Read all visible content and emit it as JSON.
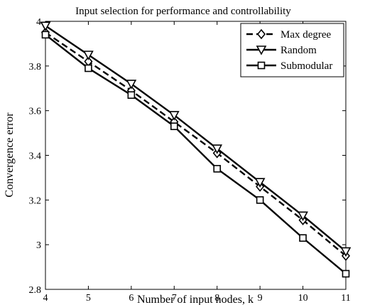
{
  "chart_data": {
    "type": "line",
    "title": "Input selection for performance and controllability",
    "xlabel": "Number of input nodes, k",
    "ylabel": "Convergence error",
    "xlim": [
      4,
      11
    ],
    "ylim": [
      2.8,
      4.0
    ],
    "x": [
      4,
      5,
      6,
      7,
      8,
      9,
      10,
      11
    ],
    "x_ticks": [
      "4",
      "5",
      "6",
      "7",
      "8",
      "9",
      "10",
      "11"
    ],
    "y_ticks": [
      {
        "value": 2.8,
        "label": "2.8"
      },
      {
        "value": 3.0,
        "label": "3"
      },
      {
        "value": 3.2,
        "label": "3.2"
      },
      {
        "value": 3.4,
        "label": "3.4"
      },
      {
        "value": 3.6,
        "label": "3.6"
      },
      {
        "value": 3.8,
        "label": "3.8"
      },
      {
        "value": 4.0,
        "label": "4"
      }
    ],
    "grid": false,
    "legend_position": "top-right",
    "series": [
      {
        "name": "Max degree",
        "marker": "diamond",
        "line_style": "dashed",
        "color": "#000000",
        "values": [
          3.95,
          3.82,
          3.69,
          3.55,
          3.41,
          3.26,
          3.11,
          2.95
        ]
      },
      {
        "name": "Random",
        "marker": "triangle-down",
        "line_style": "solid",
        "color": "#000000",
        "values": [
          3.98,
          3.85,
          3.72,
          3.58,
          3.43,
          3.28,
          3.13,
          2.97
        ]
      },
      {
        "name": "Submodular",
        "marker": "square",
        "line_style": "solid",
        "color": "#000000",
        "values": [
          3.94,
          3.79,
          3.67,
          3.53,
          3.34,
          3.2,
          3.03,
          2.87
        ]
      }
    ]
  }
}
